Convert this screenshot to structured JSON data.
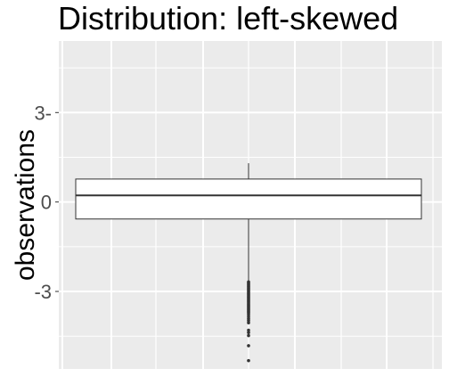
{
  "chart_data": {
    "type": "boxplot",
    "title": "Distribution: left-skewed",
    "xlabel": "",
    "ylabel": "observations",
    "ylim": [
      -5.6,
      5.4
    ],
    "y_ticks": [
      {
        "value": 3,
        "label": "3-"
      },
      {
        "value": 0,
        "label": "0"
      },
      {
        "value": -3,
        "label": "-3"
      }
    ],
    "grid": true,
    "box": {
      "whisker_high": 1.3,
      "q3": 0.77,
      "median": 0.22,
      "q1": -0.57,
      "whisker_low": -2.65
    },
    "outliers": [
      -2.68,
      -2.72,
      -2.76,
      -2.8,
      -2.84,
      -2.88,
      -2.92,
      -2.96,
      -3.0,
      -3.04,
      -3.08,
      -3.12,
      -3.16,
      -3.2,
      -3.24,
      -3.28,
      -3.32,
      -3.36,
      -3.4,
      -3.44,
      -3.48,
      -3.52,
      -3.56,
      -3.6,
      -3.64,
      -3.68,
      -3.72,
      -3.78,
      -3.85,
      -3.92,
      -3.98,
      -4.05,
      -4.3,
      -4.38,
      -4.48,
      -4.82,
      -5.32
    ],
    "colors": {
      "panel": "#ebebeb",
      "grid": "#ffffff",
      "box_fill": "#ffffff",
      "box_stroke": "#333333"
    }
  }
}
